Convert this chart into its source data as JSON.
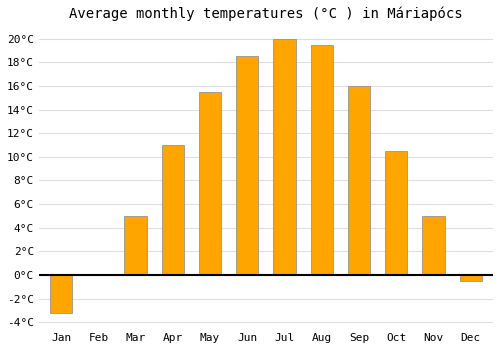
{
  "title": "Average monthly temperatures (°C ) in Máriapócs",
  "months": [
    "Jan",
    "Feb",
    "Mar",
    "Apr",
    "May",
    "Jun",
    "Jul",
    "Aug",
    "Sep",
    "Oct",
    "Nov",
    "Dec"
  ],
  "values": [
    -3.2,
    0.0,
    5.0,
    11.0,
    15.5,
    18.5,
    20.0,
    19.5,
    16.0,
    10.5,
    5.0,
    -0.5
  ],
  "bar_color": "#FFA500",
  "bar_edge_color": "#888888",
  "ylim": [
    -4.5,
    21.0
  ],
  "yticks": [
    -4,
    -2,
    0,
    2,
    4,
    6,
    8,
    10,
    12,
    14,
    16,
    18,
    20
  ],
  "ytick_labels": [
    "-4°C",
    "-2°C",
    "0°C",
    "2°C",
    "4°C",
    "6°C",
    "8°C",
    "10°C",
    "12°C",
    "14°C",
    "16°C",
    "18°C",
    "20°C"
  ],
  "background_color": "#ffffff",
  "grid_color": "#dddddd",
  "title_fontsize": 10,
  "tick_fontsize": 8,
  "bar_width": 0.6
}
